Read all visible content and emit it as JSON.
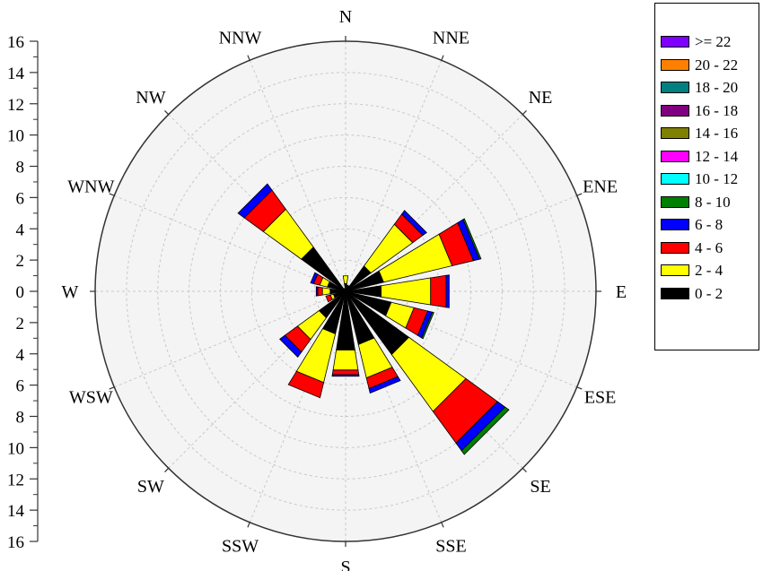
{
  "chart_data": {
    "type": "windrose",
    "radial_axis": {
      "range": [
        0,
        16
      ],
      "major_ticks": [
        0,
        2,
        4,
        6,
        8,
        10,
        12,
        14,
        16
      ],
      "tick_labels": [
        "16",
        "14",
        "12",
        "10",
        "8",
        "6",
        "4",
        "2",
        "0",
        "2",
        "4",
        "6",
        "8",
        "10",
        "12",
        "14",
        "16"
      ]
    },
    "directions": [
      "N",
      "NNE",
      "NE",
      "ENE",
      "E",
      "ESE",
      "SE",
      "SSE",
      "S",
      "SSW",
      "SW",
      "WSW",
      "W",
      "WNW",
      "NW",
      "NNW"
    ],
    "speed_bins": [
      {
        "label": "0 - 2",
        "color": "#000000"
      },
      {
        "label": "2 - 4",
        "color": "#FFFF00"
      },
      {
        "label": "4 - 6",
        "color": "#FF0000"
      },
      {
        "label": "6 - 8",
        "color": "#0000FF"
      },
      {
        "label": "8 - 10",
        "color": "#008000"
      },
      {
        "label": "10 - 12",
        "color": "#00FFFF"
      },
      {
        "label": "12 - 14",
        "color": "#FF00FF"
      },
      {
        "label": "14 - 16",
        "color": "#808000"
      },
      {
        "label": "16 - 18",
        "color": "#800080"
      },
      {
        "label": "18 - 20",
        "color": "#008080"
      },
      {
        "label": "20 - 22",
        "color": "#FF8000"
      },
      {
        "label": ">= 22",
        "color": "#8000FF"
      }
    ],
    "frequencies": {
      "N": [
        0.5,
        0.5,
        0.0,
        0.0,
        0.0
      ],
      "NNE": [
        0.4,
        0.0,
        0.0,
        0.0,
        0.0
      ],
      "NE": [
        2.0,
        3.3,
        0.8,
        0.3,
        0.0
      ],
      "ENE": [
        2.5,
        4.5,
        1.4,
        0.4,
        0.1
      ],
      "E": [
        2.3,
        3.2,
        1.0,
        0.2,
        0.0
      ],
      "ESE": [
        3.0,
        1.5,
        0.9,
        0.3,
        0.1
      ],
      "SE": [
        5.0,
        4.5,
        2.5,
        0.6,
        0.3
      ],
      "SSE": [
        3.5,
        2.2,
        0.7,
        0.3,
        0.0
      ],
      "S": [
        3.8,
        1.3,
        0.3,
        0.1,
        0.0
      ],
      "SSW": [
        2.8,
        3.2,
        1.0,
        0.0,
        0.0
      ],
      "SW": [
        2.1,
        1.7,
        1.0,
        0.4,
        0.0
      ],
      "WSW": [
        0.8,
        0.2,
        0.3,
        0.0,
        0.0
      ],
      "W": [
        1.0,
        0.5,
        0.3,
        0.1,
        0.0
      ],
      "WNW": [
        1.2,
        0.5,
        0.4,
        0.2,
        0.0
      ],
      "NW": [
        3.5,
        3.0,
        1.5,
        0.5,
        0.0
      ],
      "NNW": [
        0.2,
        0.0,
        0.0,
        0.0,
        0.0
      ]
    },
    "grid": true,
    "legend_position": "right"
  }
}
